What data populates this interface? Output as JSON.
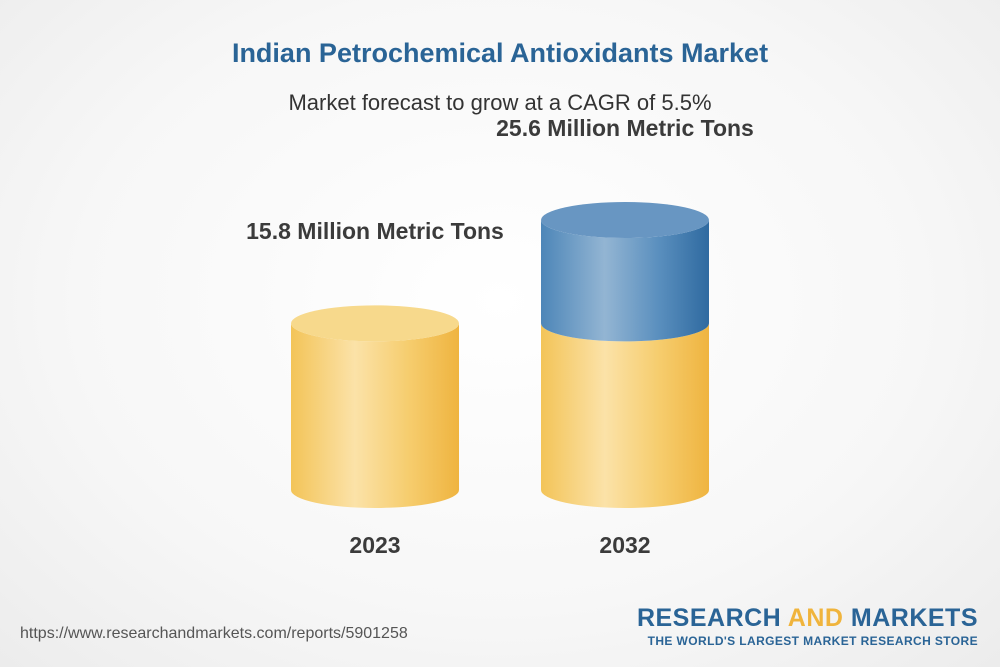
{
  "colors": {
    "base_cylinder": "#f2bf4e",
    "growth_cylinder": "#3f7aad",
    "title": "#2a6496",
    "brand_accent": "#f0b43c"
  },
  "chart_data": {
    "type": "bar",
    "style": "3d-cylinder",
    "title": "Indian Petrochemical Antioxidants Market",
    "subtitle": "Market forecast to grow at a CAGR of 5.5%",
    "categories": [
      "2023",
      "2032"
    ],
    "values": [
      15.8,
      25.6
    ],
    "value_labels": [
      "15.8 Million Metric Tons",
      "25.6 Million Metric Tons"
    ],
    "unit": "Million Metric Tons",
    "grid": false,
    "legend": "none"
  },
  "footer": {
    "source_url": "https://www.researchandmarkets.com/reports/5901258",
    "brand_part1": "RESEARCH ",
    "brand_part2": "AND",
    "brand_part3": " MARKETS",
    "brand_tagline": "THE WORLD'S LARGEST MARKET RESEARCH STORE"
  }
}
